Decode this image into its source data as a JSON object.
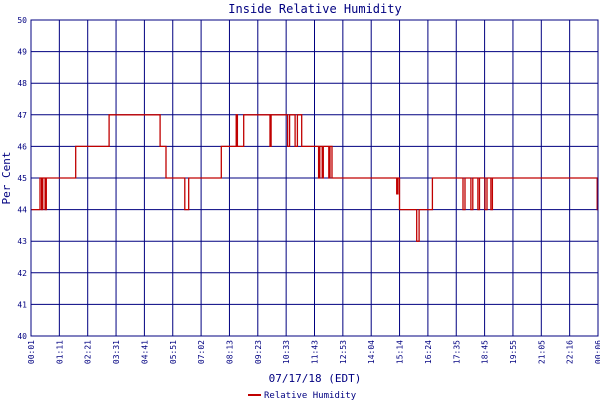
{
  "chart_data": {
    "type": "line",
    "title": "Inside Relative Humidity",
    "xlabel": "07/17/18 (EDT)",
    "ylabel": "Per Cent",
    "ylim": [
      40,
      50
    ],
    "yticks": [
      40,
      41,
      42,
      43,
      44,
      45,
      46,
      47,
      48,
      49,
      50
    ],
    "xlim": [
      "00:01",
      "00:06"
    ],
    "xticks": [
      "00:01",
      "01:11",
      "02:21",
      "03:31",
      "04:41",
      "05:51",
      "07:02",
      "08:13",
      "09:23",
      "10:33",
      "11:43",
      "12:53",
      "14:04",
      "15:14",
      "16:24",
      "17:35",
      "18:45",
      "19:55",
      "21:05",
      "22:16",
      "00:06"
    ],
    "grid": true,
    "legend": "bottom-center",
    "series": [
      {
        "name": "Relative Humidity",
        "color": "#c00000",
        "points": [
          [
            "00:01",
            44
          ],
          [
            "00:24",
            44
          ],
          [
            "00:24",
            45
          ],
          [
            "00:28",
            45
          ],
          [
            "00:28",
            44
          ],
          [
            "00:31",
            44
          ],
          [
            "00:31",
            45
          ],
          [
            "00:37",
            45
          ],
          [
            "00:37",
            44
          ],
          [
            "00:40",
            44
          ],
          [
            "00:40",
            45
          ],
          [
            "01:55",
            45
          ],
          [
            "01:55",
            46
          ],
          [
            "03:20",
            46
          ],
          [
            "03:20",
            47
          ],
          [
            "05:30",
            47
          ],
          [
            "05:30",
            46
          ],
          [
            "05:45",
            46
          ],
          [
            "05:45",
            45
          ],
          [
            "06:33",
            45
          ],
          [
            "06:33",
            44
          ],
          [
            "06:43",
            44
          ],
          [
            "06:43",
            45
          ],
          [
            "08:06",
            45
          ],
          [
            "08:06",
            46
          ],
          [
            "08:44",
            46
          ],
          [
            "08:44",
            47
          ],
          [
            "08:47",
            47
          ],
          [
            "08:47",
            46
          ],
          [
            "09:03",
            46
          ],
          [
            "09:03",
            47
          ],
          [
            "10:10",
            47
          ],
          [
            "10:10",
            46
          ],
          [
            "10:13",
            46
          ],
          [
            "10:13",
            47
          ],
          [
            "10:55",
            47
          ],
          [
            "10:55",
            46
          ],
          [
            "11:00",
            46
          ],
          [
            "11:00",
            47
          ],
          [
            "11:14",
            47
          ],
          [
            "11:14",
            46
          ],
          [
            "11:20",
            46
          ],
          [
            "11:20",
            47
          ],
          [
            "11:31",
            47
          ],
          [
            "11:31",
            46
          ],
          [
            "12:14",
            46
          ],
          [
            "12:14",
            45
          ],
          [
            "12:17",
            45
          ],
          [
            "12:17",
            46
          ],
          [
            "12:23",
            46
          ],
          [
            "12:23",
            45
          ],
          [
            "12:26",
            45
          ],
          [
            "12:26",
            46
          ],
          [
            "12:40",
            46
          ],
          [
            "12:40",
            45
          ],
          [
            "12:43",
            45
          ],
          [
            "12:43",
            46
          ],
          [
            "12:48",
            46
          ],
          [
            "12:48",
            45
          ],
          [
            "15:33",
            45
          ],
          [
            "15:33",
            44.5
          ],
          [
            "15:36",
            44.5
          ],
          [
            "15:36",
            45
          ],
          [
            "15:40",
            45
          ],
          [
            "15:40",
            44
          ],
          [
            "16:24",
            44
          ],
          [
            "16:24",
            43
          ],
          [
            "16:30",
            43
          ],
          [
            "16:30",
            44
          ],
          [
            "17:04",
            44
          ],
          [
            "17:04",
            45
          ],
          [
            "18:22",
            45
          ],
          [
            "18:22",
            44
          ],
          [
            "18:27",
            44
          ],
          [
            "18:27",
            45
          ],
          [
            "18:42",
            45
          ],
          [
            "18:42",
            44
          ],
          [
            "18:47",
            44
          ],
          [
            "18:47",
            45
          ],
          [
            "19:00",
            45
          ],
          [
            "19:00",
            44
          ],
          [
            "19:04",
            44
          ],
          [
            "19:04",
            45
          ],
          [
            "19:18",
            45
          ],
          [
            "19:18",
            44
          ],
          [
            "19:23",
            44
          ],
          [
            "19:23",
            45
          ],
          [
            "19:33",
            45
          ],
          [
            "19:33",
            44
          ],
          [
            "19:37",
            44
          ],
          [
            "19:37",
            45
          ],
          [
            "24:04",
            45
          ],
          [
            "24:04",
            44
          ],
          [
            "24:06",
            44
          ]
        ]
      }
    ]
  }
}
